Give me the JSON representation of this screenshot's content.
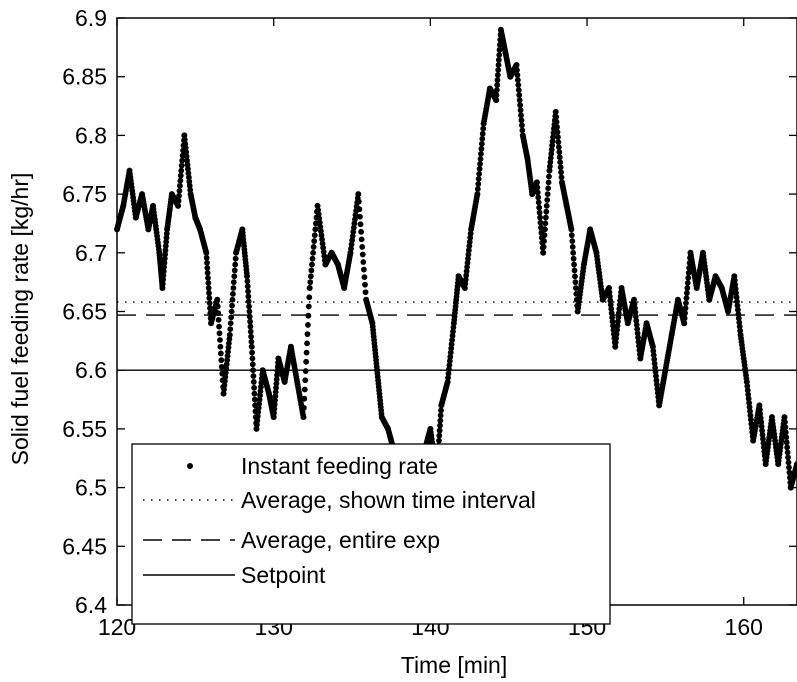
{
  "chart_data": {
    "type": "scatter",
    "xlabel": "Time [min]",
    "ylabel": "Solid fuel feeding rate [kg/hr]",
    "xlim": [
      120,
      163.4
    ],
    "ylim": [
      6.4,
      6.9
    ],
    "x_ticks": [
      120,
      130,
      140,
      150,
      160
    ],
    "x_tick_labels": [
      "120",
      "130",
      "140",
      "150",
      "160"
    ],
    "y_ticks": [
      6.4,
      6.45,
      6.5,
      6.55,
      6.6,
      6.65,
      6.7,
      6.75,
      6.8,
      6.85,
      6.9
    ],
    "y_tick_labels": [
      "6.4",
      "6.45",
      "6.5",
      "6.55",
      "6.6",
      "6.65",
      "6.7",
      "6.75",
      "6.8",
      "6.85",
      "6.9"
    ],
    "grid": false,
    "legend_position": "lower-left",
    "series": [
      {
        "name": "Instant feeding rate",
        "style": "dots",
        "color": "#000000",
        "points": [
          [
            120.0,
            6.72
          ],
          [
            120.4,
            6.74
          ],
          [
            120.8,
            6.77
          ],
          [
            121.2,
            6.73
          ],
          [
            121.6,
            6.75
          ],
          [
            122.0,
            6.72
          ],
          [
            122.3,
            6.74
          ],
          [
            122.7,
            6.7
          ],
          [
            122.9,
            6.67
          ],
          [
            123.2,
            6.72
          ],
          [
            123.5,
            6.75
          ],
          [
            123.9,
            6.74
          ],
          [
            124.3,
            6.8
          ],
          [
            124.7,
            6.75
          ],
          [
            125.0,
            6.73
          ],
          [
            125.3,
            6.72
          ],
          [
            125.7,
            6.7
          ],
          [
            126.0,
            6.64
          ],
          [
            126.4,
            6.66
          ],
          [
            126.8,
            6.58
          ],
          [
            127.2,
            6.63
          ],
          [
            127.6,
            6.7
          ],
          [
            128.0,
            6.72
          ],
          [
            128.3,
            6.68
          ],
          [
            128.6,
            6.62
          ],
          [
            128.9,
            6.55
          ],
          [
            129.3,
            6.6
          ],
          [
            129.7,
            6.58
          ],
          [
            130.0,
            6.56
          ],
          [
            130.3,
            6.61
          ],
          [
            130.7,
            6.59
          ],
          [
            131.1,
            6.62
          ],
          [
            131.5,
            6.59
          ],
          [
            131.9,
            6.56
          ],
          [
            132.3,
            6.67
          ],
          [
            132.8,
            6.74
          ],
          [
            133.3,
            6.69
          ],
          [
            133.7,
            6.7
          ],
          [
            134.1,
            6.69
          ],
          [
            134.5,
            6.67
          ],
          [
            134.9,
            6.7
          ],
          [
            135.4,
            6.75
          ],
          [
            135.9,
            6.66
          ],
          [
            136.3,
            6.64
          ],
          [
            136.6,
            6.6
          ],
          [
            136.9,
            6.56
          ],
          [
            137.3,
            6.55
          ],
          [
            137.7,
            6.53
          ],
          [
            138.2,
            6.51
          ],
          [
            138.7,
            6.5
          ],
          [
            139.2,
            6.51
          ],
          [
            139.6,
            6.53
          ],
          [
            140.0,
            6.55
          ],
          [
            140.4,
            6.51
          ],
          [
            140.7,
            6.57
          ],
          [
            141.1,
            6.59
          ],
          [
            141.5,
            6.64
          ],
          [
            141.8,
            6.68
          ],
          [
            142.2,
            6.67
          ],
          [
            142.6,
            6.72
          ],
          [
            143.0,
            6.75
          ],
          [
            143.4,
            6.81
          ],
          [
            143.8,
            6.84
          ],
          [
            144.2,
            6.83
          ],
          [
            144.5,
            6.89
          ],
          [
            144.8,
            6.87
          ],
          [
            145.1,
            6.85
          ],
          [
            145.5,
            6.86
          ],
          [
            145.9,
            6.8
          ],
          [
            146.2,
            6.78
          ],
          [
            146.5,
            6.75
          ],
          [
            146.8,
            6.76
          ],
          [
            147.2,
            6.7
          ],
          [
            147.6,
            6.77
          ],
          [
            148.0,
            6.82
          ],
          [
            148.4,
            6.76
          ],
          [
            148.7,
            6.74
          ],
          [
            149.0,
            6.72
          ],
          [
            149.4,
            6.65
          ],
          [
            149.8,
            6.69
          ],
          [
            150.2,
            6.72
          ],
          [
            150.6,
            6.7
          ],
          [
            151.0,
            6.66
          ],
          [
            151.4,
            6.67
          ],
          [
            151.8,
            6.62
          ],
          [
            152.2,
            6.67
          ],
          [
            152.6,
            6.64
          ],
          [
            153.0,
            6.66
          ],
          [
            153.4,
            6.61
          ],
          [
            153.8,
            6.64
          ],
          [
            154.2,
            6.62
          ],
          [
            154.6,
            6.57
          ],
          [
            155.0,
            6.6
          ],
          [
            155.4,
            6.63
          ],
          [
            155.8,
            6.66
          ],
          [
            156.2,
            6.64
          ],
          [
            156.6,
            6.7
          ],
          [
            157.0,
            6.67
          ],
          [
            157.4,
            6.7
          ],
          [
            157.8,
            6.66
          ],
          [
            158.2,
            6.68
          ],
          [
            158.6,
            6.67
          ],
          [
            159.0,
            6.65
          ],
          [
            159.4,
            6.68
          ],
          [
            159.8,
            6.63
          ],
          [
            160.2,
            6.59
          ],
          [
            160.6,
            6.54
          ],
          [
            161.0,
            6.57
          ],
          [
            161.4,
            6.52
          ],
          [
            161.8,
            6.56
          ],
          [
            162.2,
            6.52
          ],
          [
            162.6,
            6.56
          ],
          [
            163.0,
            6.5
          ],
          [
            163.4,
            6.52
          ]
        ]
      },
      {
        "name": "Average, shown time interval",
        "style": "dotted",
        "color": "#000000",
        "y": 6.658
      },
      {
        "name": "Average, entire exp",
        "style": "dashed",
        "color": "#000000",
        "y": 6.647
      },
      {
        "name": "Setpoint",
        "style": "solid",
        "color": "#000000",
        "y": 6.6
      }
    ]
  }
}
